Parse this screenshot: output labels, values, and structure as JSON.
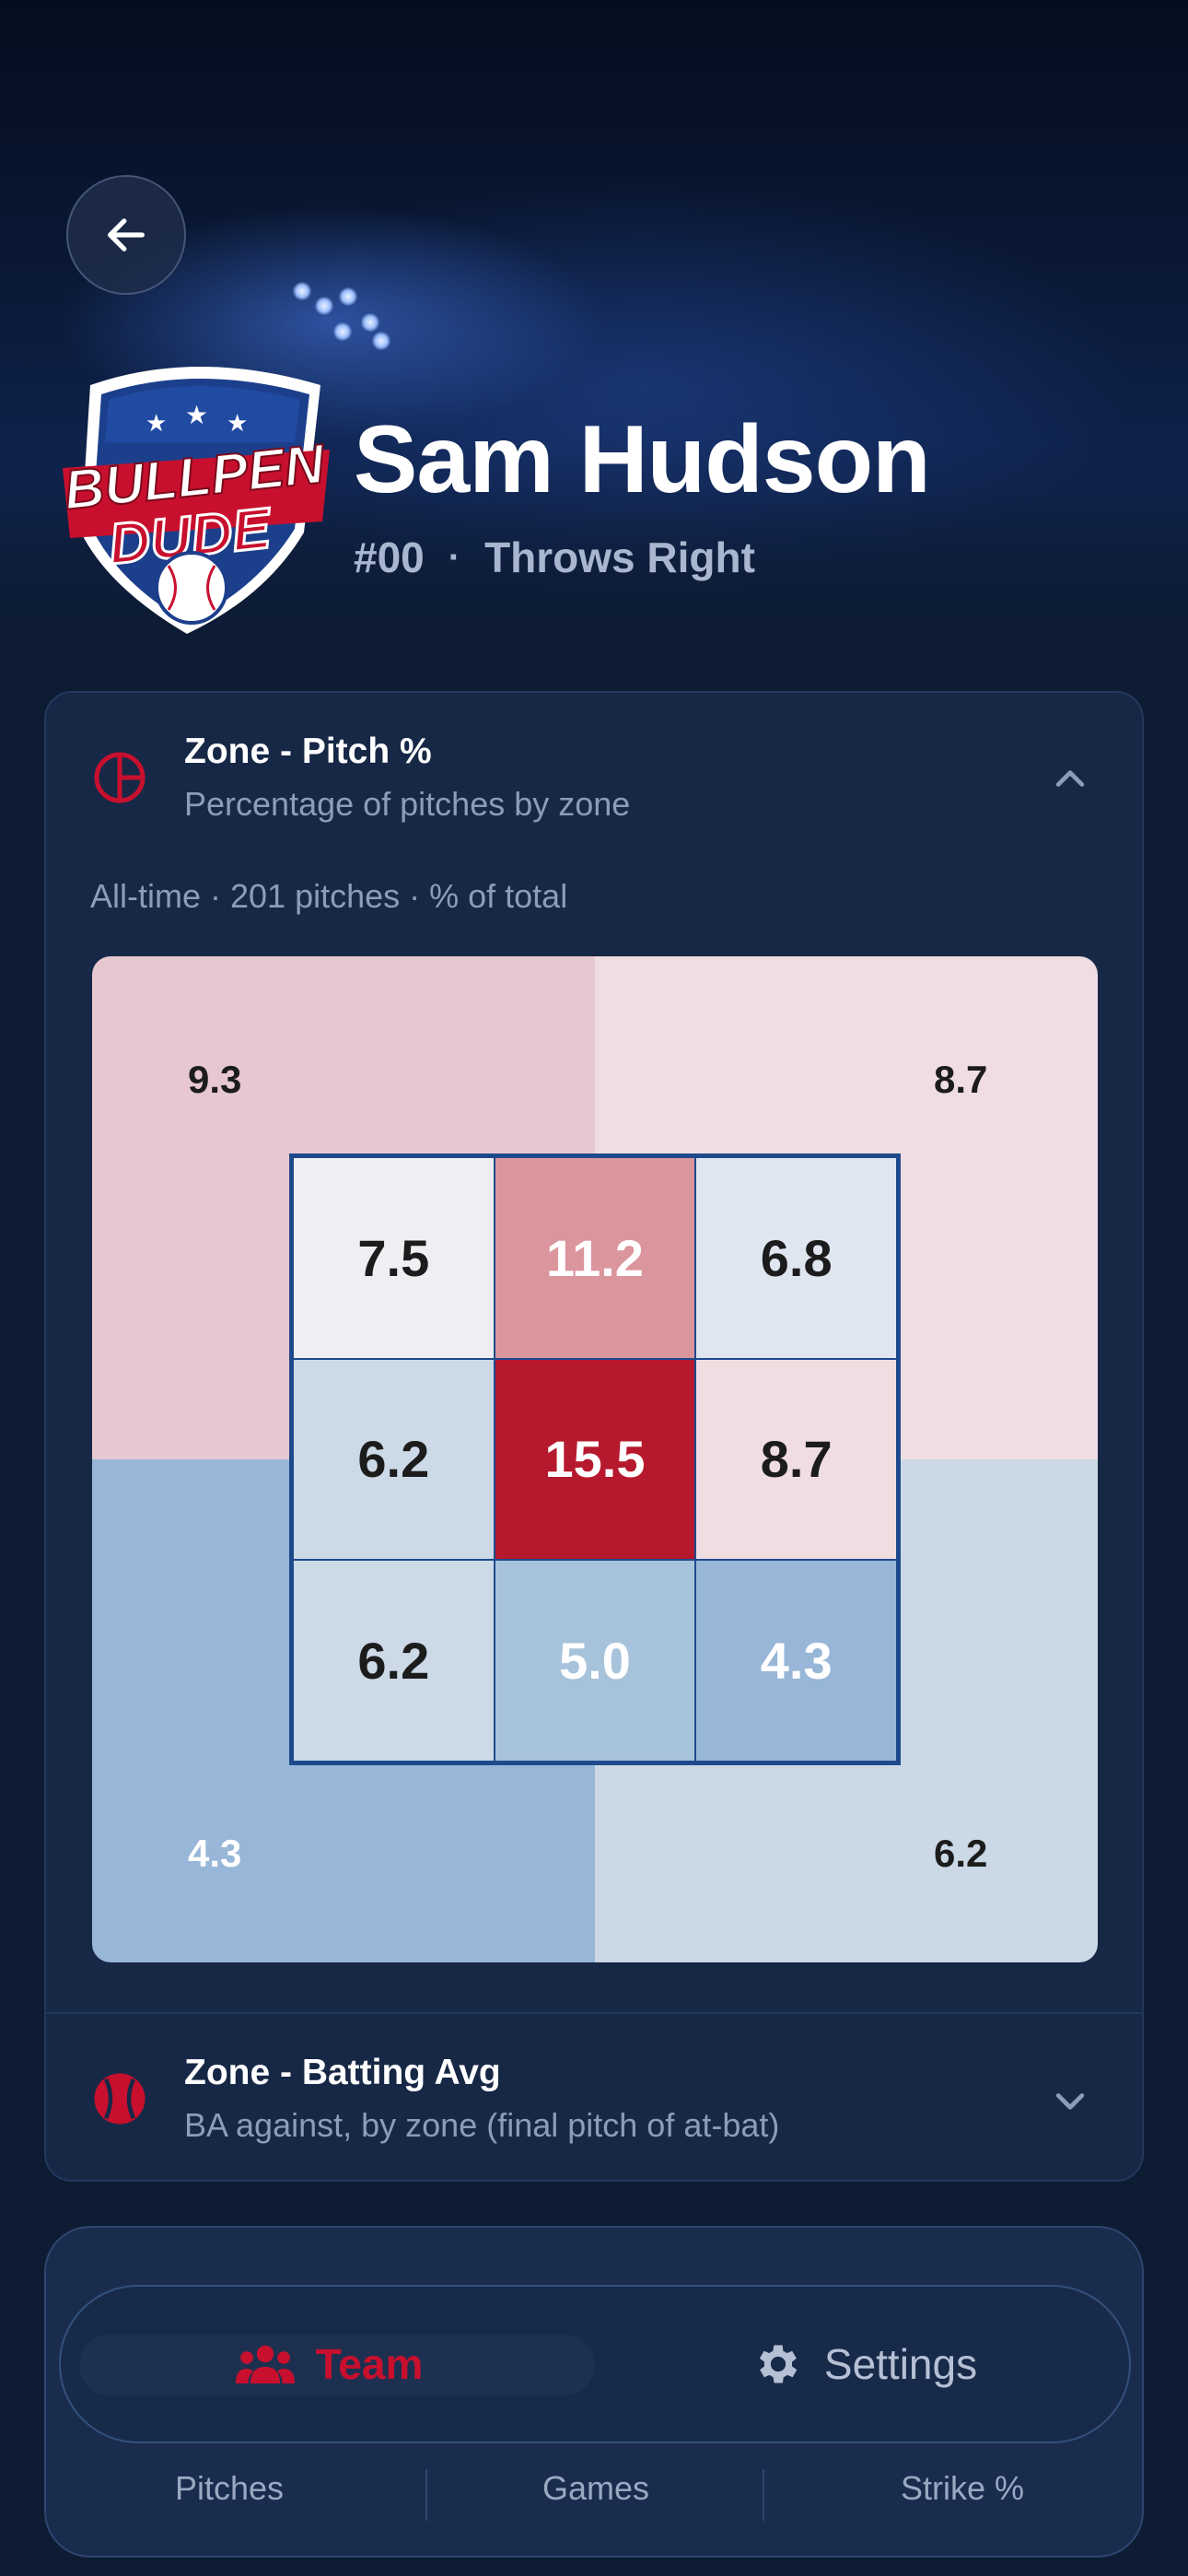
{
  "header": {
    "player_name": "Sam Hudson",
    "number": "#00",
    "separator": "·",
    "throws": "Throws Right",
    "logo_text_line1": "BULLPEN",
    "logo_text_line2": "DUDE"
  },
  "sections": [
    {
      "title": "Zone - Pitch %",
      "subtitle": "Percentage of pitches by zone",
      "icon": "zone-target-icon",
      "expanded": true,
      "meta": "All-time · 201 pitches · % of total",
      "outer_zones": {
        "top_left": "9.3",
        "top_right": "8.7",
        "bottom_left": "4.3",
        "bottom_right": "6.2"
      },
      "inner_zones": [
        [
          "7.5",
          "11.2",
          "6.8"
        ],
        [
          "6.2",
          "15.5",
          "8.7"
        ],
        [
          "6.2",
          "5.0",
          "4.3"
        ]
      ]
    },
    {
      "title": "Zone - Batting Avg",
      "subtitle": "BA against, by zone (final pitch of at-bat)",
      "icon": "baseball-icon",
      "expanded": false
    }
  ],
  "tabbar": {
    "team_label": "Team",
    "settings_label": "Settings",
    "active": "Team"
  },
  "stats_row": [
    "Pitches",
    "Games",
    "Strike %"
  ],
  "colors": {
    "accent_red": "#c8102e",
    "strike_zone_border": "#1e4a8c",
    "background": "#0d1b33",
    "card": "#172846"
  }
}
